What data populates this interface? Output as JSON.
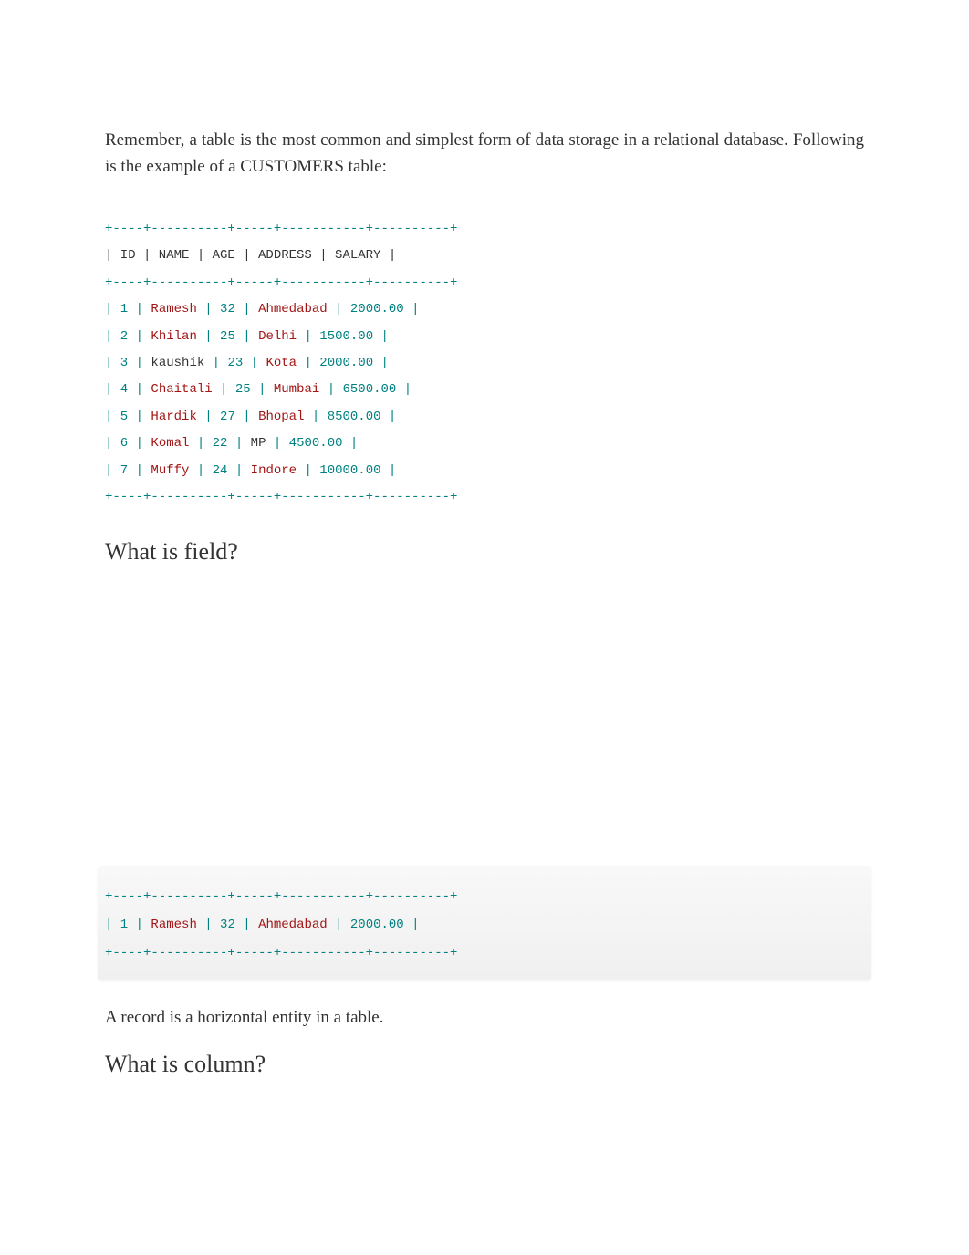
{
  "intro": "Remember, a table is the most common and simplest form of data storage in a relational database. Following is the example of a CUSTOMERS table:",
  "divider": "+----+----------+-----+-----------+----------+",
  "header_row": "| ID | NAME     | AGE | ADDRESS    | SALARY   |",
  "customers_table": {
    "rows": [
      {
        "id": "1",
        "name": "Ramesh",
        "age": "32",
        "address": "Ahmedabad",
        "salary": "2000.00",
        "name_color": "#a31515",
        "address_color": "#a31515"
      },
      {
        "id": "2",
        "name": "Khilan",
        "age": "25",
        "address": "Delhi",
        "salary": "1500.00",
        "name_color": "#a31515",
        "address_color": "#a31515"
      },
      {
        "id": "3",
        "name": "kaushik",
        "age": "23",
        "address": "Kota",
        "salary": "2000.00",
        "name_color": "#333333",
        "address_color": "#a31515"
      },
      {
        "id": "4",
        "name": "Chaitali",
        "age": "25",
        "address": "Mumbai",
        "salary": "6500.00",
        "name_color": "#a31515",
        "address_color": "#a31515"
      },
      {
        "id": "5",
        "name": "Hardik",
        "age": "27",
        "address": "Bhopal",
        "salary": "8500.00",
        "name_color": "#a31515",
        "address_color": "#a31515"
      },
      {
        "id": "6",
        "name": "Komal",
        "age": "22",
        "address": "MP",
        "salary": "4500.00",
        "name_color": "#a31515",
        "address_color": "#333333"
      },
      {
        "id": "7",
        "name": "Muffy",
        "age": "24",
        "address": "Indore",
        "salary": "10000.00",
        "name_color": "#a31515",
        "address_color": "#a31515"
      }
    ]
  },
  "heading_field": "What is field?",
  "record_row": {
    "id": "1",
    "name": "Ramesh",
    "age": "32",
    "address": "Ahmedabad",
    "salary": "2000.00"
  },
  "record_text": "A record is a horizontal entity in a table.",
  "heading_column": "What is column?",
  "colors": {
    "teal": "#008080",
    "red": "#a31515",
    "text": "#333333",
    "bg": "#ffffff",
    "highlight_bg": "#f5f5f5"
  }
}
